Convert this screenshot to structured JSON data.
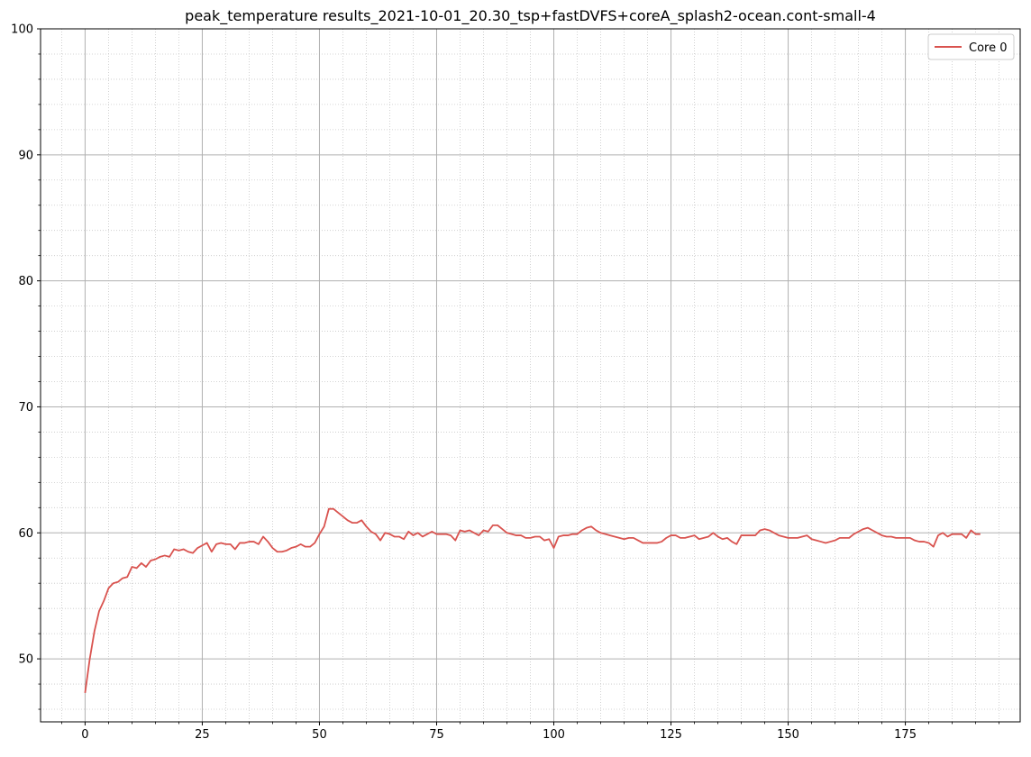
{
  "chart_data": {
    "type": "line",
    "title": "peak_temperature results_2021-10-01_20.30_tsp+fastDVFS+coreA_splash2-ocean.cont-small-4",
    "xlabel": "",
    "ylabel": "",
    "xlim": [
      -9.5,
      199.5
    ],
    "ylim": [
      45,
      100
    ],
    "x_ticks": [
      0,
      25,
      50,
      75,
      100,
      125,
      150,
      175
    ],
    "x_tick_labels": [
      "0",
      "25",
      "50",
      "75",
      "100",
      "125",
      "150",
      "175"
    ],
    "y_ticks": [
      50,
      60,
      70,
      80,
      90,
      100
    ],
    "y_tick_labels": [
      "50",
      "60",
      "70",
      "80",
      "90",
      "100"
    ],
    "x_minor_step": 5,
    "y_minor_step": 2,
    "grid": true,
    "legend_position": "top-right",
    "series": [
      {
        "name": "Core 0",
        "color": "#d9534f",
        "values": [
          47.3,
          50.0,
          52.2,
          53.8,
          54.6,
          55.6,
          56.0,
          56.1,
          56.4,
          56.5,
          57.3,
          57.2,
          57.6,
          57.3,
          57.8,
          57.9,
          58.1,
          58.2,
          58.1,
          58.7,
          58.6,
          58.7,
          58.5,
          58.4,
          58.8,
          59.0,
          59.2,
          58.5,
          59.1,
          59.2,
          59.1,
          59.1,
          58.7,
          59.2,
          59.2,
          59.3,
          59.3,
          59.1,
          59.7,
          59.3,
          58.8,
          58.5,
          58.5,
          58.6,
          58.8,
          58.9,
          59.1,
          58.9,
          58.9,
          59.2,
          59.9,
          60.5,
          61.9,
          61.9,
          61.6,
          61.3,
          61.0,
          60.8,
          60.8,
          61.0,
          60.5,
          60.1,
          59.9,
          59.4,
          60.0,
          59.9,
          59.7,
          59.7,
          59.5,
          60.1,
          59.8,
          60.0,
          59.7,
          59.9,
          60.1,
          59.9,
          59.9,
          59.9,
          59.8,
          59.4,
          60.2,
          60.1,
          60.2,
          60.0,
          59.8,
          60.2,
          60.1,
          60.6,
          60.6,
          60.3,
          60.0,
          59.9,
          59.8,
          59.8,
          59.6,
          59.6,
          59.7,
          59.7,
          59.4,
          59.5,
          58.8,
          59.7,
          59.8,
          59.8,
          59.9,
          59.9,
          60.2,
          60.4,
          60.5,
          60.2,
          60.0,
          59.9,
          59.8,
          59.7,
          59.6,
          59.5,
          59.6,
          59.6,
          59.4,
          59.2,
          59.2,
          59.2,
          59.2,
          59.3,
          59.6,
          59.8,
          59.8,
          59.6,
          59.6,
          59.7,
          59.8,
          59.5,
          59.6,
          59.7,
          60.0,
          59.7,
          59.5,
          59.6,
          59.3,
          59.1,
          59.8,
          59.8,
          59.8,
          59.8,
          60.2,
          60.3,
          60.2,
          60.0,
          59.8,
          59.7,
          59.6,
          59.6,
          59.6,
          59.7,
          59.8,
          59.5,
          59.4,
          59.3,
          59.2,
          59.3,
          59.4,
          59.6,
          59.6,
          59.6,
          59.9,
          60.1,
          60.3,
          60.4,
          60.2,
          60.0,
          59.8,
          59.7,
          59.7,
          59.6,
          59.6,
          59.6,
          59.6,
          59.4,
          59.3,
          59.3,
          59.2,
          58.9,
          59.8,
          60.0,
          59.7,
          59.9,
          59.9,
          59.9,
          59.6,
          60.2,
          59.9,
          59.9
        ]
      }
    ]
  }
}
